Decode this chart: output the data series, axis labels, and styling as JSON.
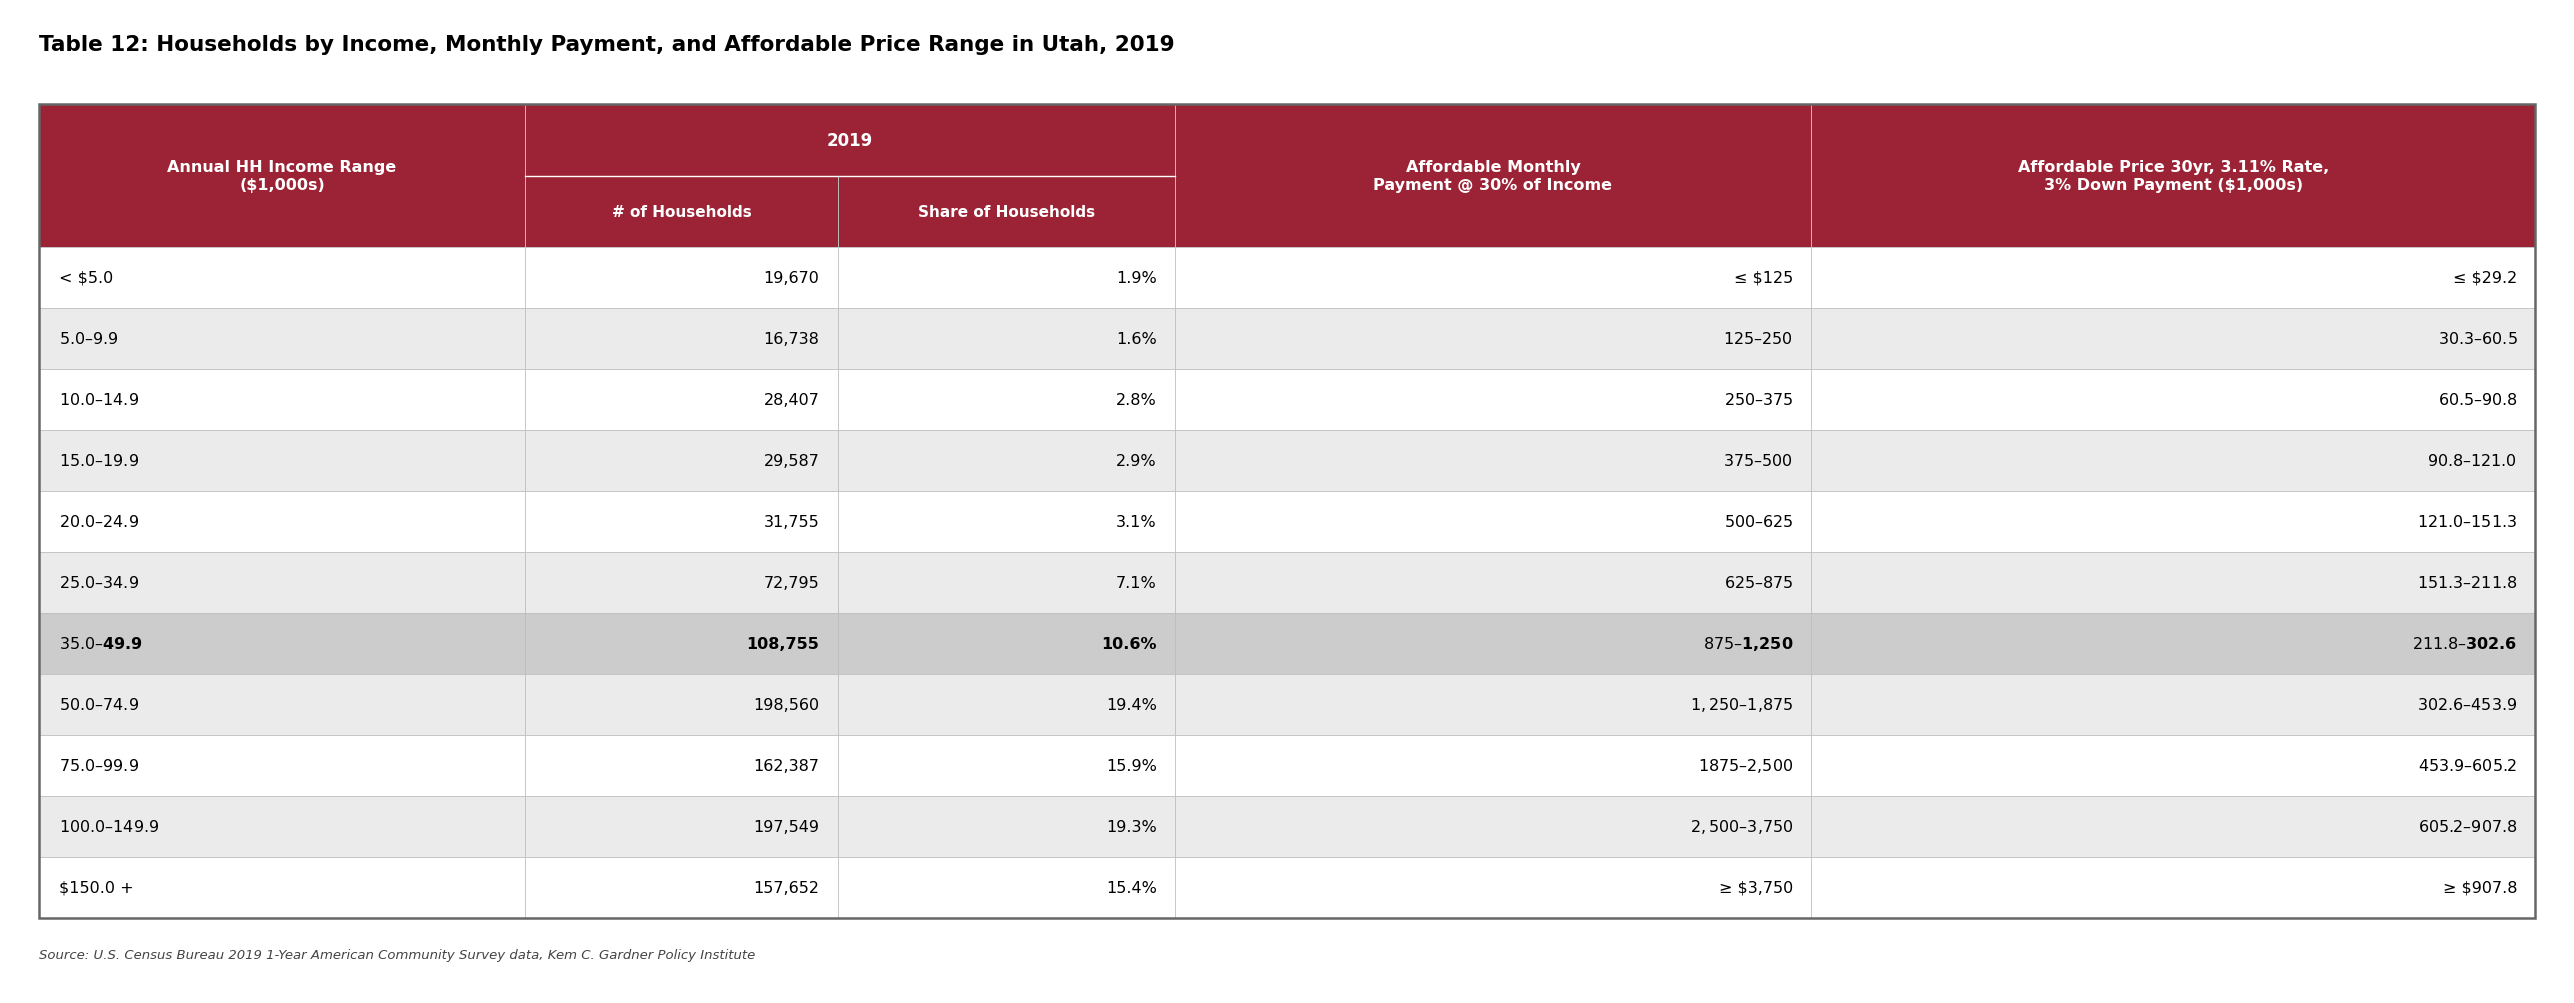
{
  "title": "Table 12: Households by Income, Monthly Payment, and Affordable Price Range in Utah, 2019",
  "source": "Source: U.S. Census Bureau 2019 1-Year American Community Survey data, Kem C. Gardner Policy Institute",
  "rows": [
    [
      "< $5.0",
      "19,670",
      "1.9%",
      "≤ $125",
      "≤ $29.2"
    ],
    [
      "$5.0–$9.9",
      "16,738",
      "1.6%",
      "$125–$250",
      "$30.3–$60.5"
    ],
    [
      "$10.0–$14.9",
      "28,407",
      "2.8%",
      "$250–$375",
      "$60.5–$90.8"
    ],
    [
      "$15.0–$19.9",
      "29,587",
      "2.9%",
      "$375–$500",
      "$90.8–$121.0"
    ],
    [
      "$20.0–$24.9",
      "31,755",
      "3.1%",
      "$500–$625",
      "$121.0–$151.3"
    ],
    [
      "$25.0–$34.9",
      "72,795",
      "7.1%",
      "$625–$875",
      "$151.3–$211.8"
    ],
    [
      "$35.0–$49.9",
      "108,755",
      "10.6%",
      "$875–$1,250",
      "$211.8–$302.6"
    ],
    [
      "$50.0–$74.9",
      "198,560",
      "19.4%",
      "$1,250–$1,875",
      "$302.6–$453.9"
    ],
    [
      "$75.0–$99.9",
      "162,387",
      "15.9%",
      "$1875–$2,500",
      "$453.9–$605.2"
    ],
    [
      "$100.0–$149.9",
      "197,549",
      "19.3%",
      "$2,500–$3,750",
      "$605.2–$907.8"
    ],
    [
      "$150.0 +",
      "157,652",
      "15.4%",
      "≥ $3,750",
      "≥ $907.8"
    ]
  ],
  "bold_row_index": 6,
  "header_bg": "#9B2335",
  "header_text": "#FFFFFF",
  "row_bg_white": "#FFFFFF",
  "row_bg_gray": "#EBEBEB",
  "bold_row_bg": "#CCCCCC",
  "border_color_inner": "#BBBBBB",
  "border_color_outer": "#666666",
  "title_color": "#000000",
  "source_color": "#444444",
  "figsize": [
    25.74,
    10.04
  ],
  "dpi": 100
}
